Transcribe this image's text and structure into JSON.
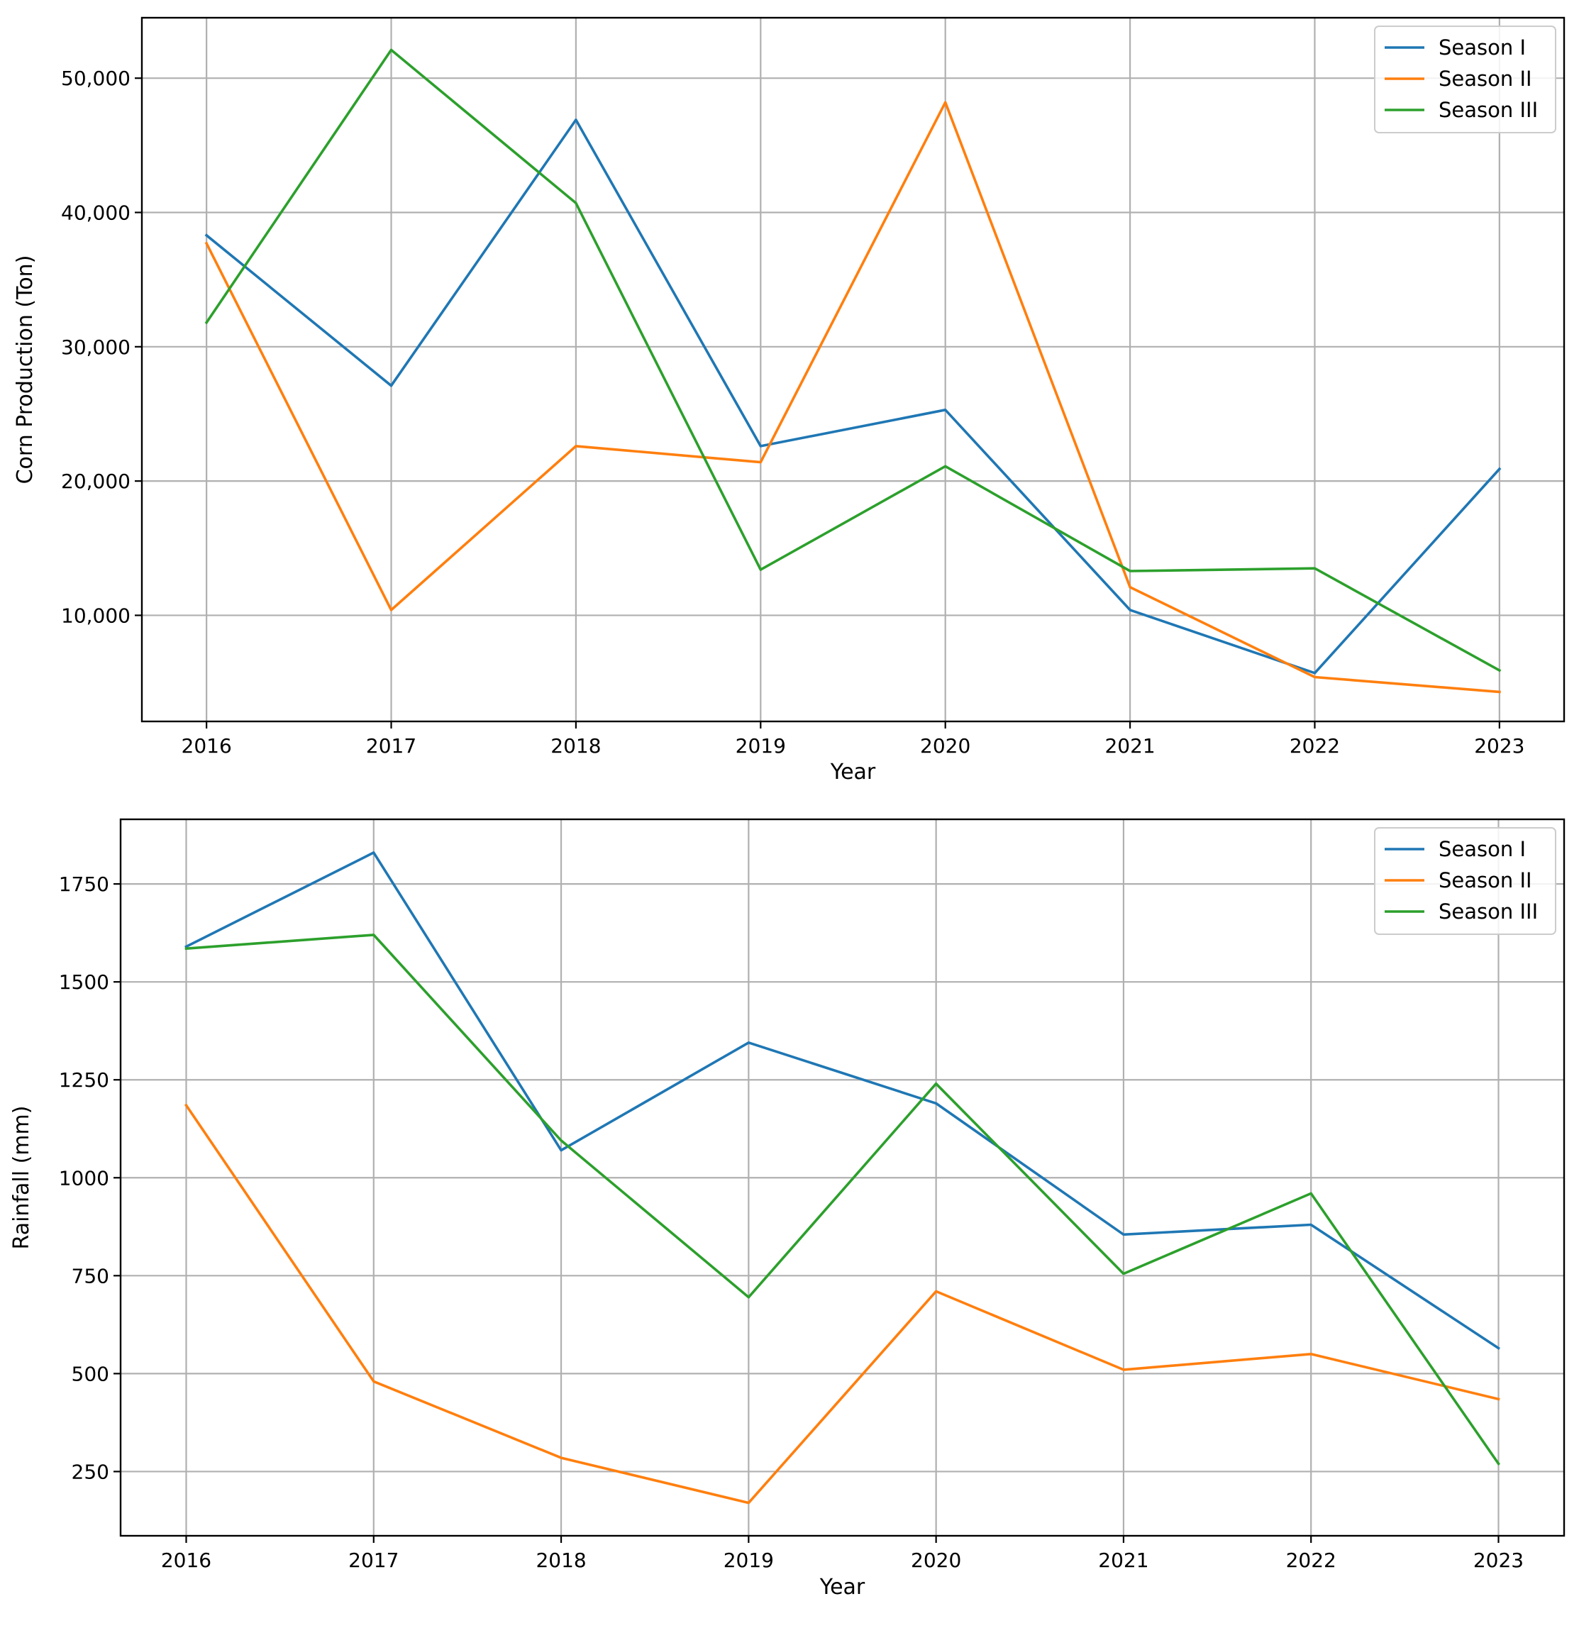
{
  "chart_data": [
    {
      "type": "line",
      "title": "",
      "xlabel": "Year",
      "ylabel": "Corn Production (Ton)",
      "x": [
        2016,
        2017,
        2018,
        2019,
        2020,
        2021,
        2022,
        2023
      ],
      "xlim": [
        2015.65,
        2023.35
      ],
      "ylim": [
        2100,
        54500
      ],
      "yticks": [
        10000,
        20000,
        30000,
        40000,
        50000
      ],
      "ytick_labels": [
        "10,000",
        "20,000",
        "30,000",
        "40,000",
        "50,000"
      ],
      "grid": true,
      "legend_position": "top-right",
      "series": [
        {
          "name": "Season I",
          "color": "#1f77b4",
          "values": [
            38300,
            27100,
            46900,
            22600,
            25300,
            10400,
            5700,
            20900
          ]
        },
        {
          "name": "Season II",
          "color": "#ff7f0e",
          "values": [
            37700,
            10400,
            22600,
            21400,
            48200,
            12100,
            5400,
            4300
          ]
        },
        {
          "name": "Season III",
          "color": "#2ca02c",
          "values": [
            31800,
            52100,
            40700,
            13400,
            21100,
            13300,
            13500,
            5900
          ]
        }
      ]
    },
    {
      "type": "line",
      "title": "",
      "xlabel": "Year",
      "ylabel": "Rainfall (mm)",
      "x": [
        2016,
        2017,
        2018,
        2019,
        2020,
        2021,
        2022,
        2023
      ],
      "xlim": [
        2015.65,
        2023.35
      ],
      "ylim": [
        86,
        1915
      ],
      "yticks": [
        250,
        500,
        750,
        1000,
        1250,
        1500,
        1750
      ],
      "ytick_labels": [
        "250",
        "500",
        "750",
        "1000",
        "1250",
        "1500",
        "1750"
      ],
      "grid": true,
      "legend_position": "top-right",
      "series": [
        {
          "name": "Season I",
          "color": "#1f77b4",
          "values": [
            1590,
            1830,
            1070,
            1345,
            1190,
            855,
            880,
            565
          ]
        },
        {
          "name": "Season II",
          "color": "#ff7f0e",
          "values": [
            1185,
            480,
            285,
            170,
            710,
            510,
            550,
            435
          ]
        },
        {
          "name": "Season III",
          "color": "#2ca02c",
          "values": [
            1585,
            1620,
            1095,
            695,
            1240,
            755,
            960,
            270
          ]
        }
      ]
    }
  ]
}
